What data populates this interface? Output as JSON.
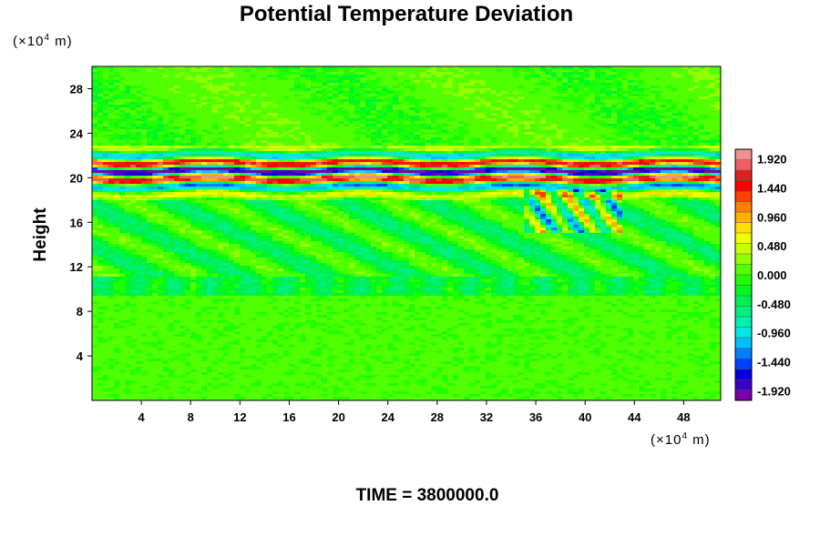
{
  "chart_data": {
    "type": "heatmap",
    "title": "Potential Temperature Deviation",
    "ylabel": "Height",
    "xlabel": "",
    "x_unit_prefix": "(×10",
    "x_unit_exp": "4",
    "x_unit_suffix": " m)",
    "y_unit_prefix": "(×10",
    "y_unit_exp": "4",
    "y_unit_suffix": " m)",
    "xlim": [
      0,
      51
    ],
    "ylim": [
      0,
      30
    ],
    "x_ticks": [
      4,
      8,
      12,
      16,
      20,
      24,
      28,
      32,
      36,
      40,
      44,
      48
    ],
    "y_ticks": [
      4,
      8,
      12,
      16,
      20,
      24,
      28
    ],
    "colorbar": {
      "range": [
        -2.08,
        2.08
      ],
      "tick_labels": [
        "1.920",
        "1.440",
        "0.960",
        "0.480",
        "0.000",
        "-0.480",
        "-0.960",
        "-1.440",
        "-1.920"
      ],
      "tick_values": [
        1.92,
        1.44,
        0.96,
        0.48,
        0.0,
        -0.48,
        -0.96,
        -1.44,
        -1.92
      ],
      "colors": [
        "#7b00a8",
        "#3a00c8",
        "#0000e0",
        "#0040ff",
        "#0080ff",
        "#00c0ff",
        "#00e8e0",
        "#00f0b0",
        "#00f080",
        "#00f050",
        "#00f820",
        "#20ff00",
        "#50ff00",
        "#90ff00",
        "#c8ff00",
        "#f0ff00",
        "#ffe000",
        "#ffb000",
        "#ff8000",
        "#ff4000",
        "#ff0000",
        "#e02020",
        "#f06060",
        "#f09090"
      ]
    },
    "field_description_bands": [
      {
        "y": [
          0,
          9.5
        ],
        "value": 0.05
      },
      {
        "y": [
          9.5,
          11
        ],
        "value": -0.35
      },
      {
        "y": [
          11,
          18
        ],
        "value": -0.3
      },
      {
        "y": [
          18,
          23
        ],
        "value": 0.0
      },
      {
        "y": [
          23,
          30
        ],
        "value": 0.1
      }
    ],
    "footer": "TIME = 3800000.0"
  }
}
